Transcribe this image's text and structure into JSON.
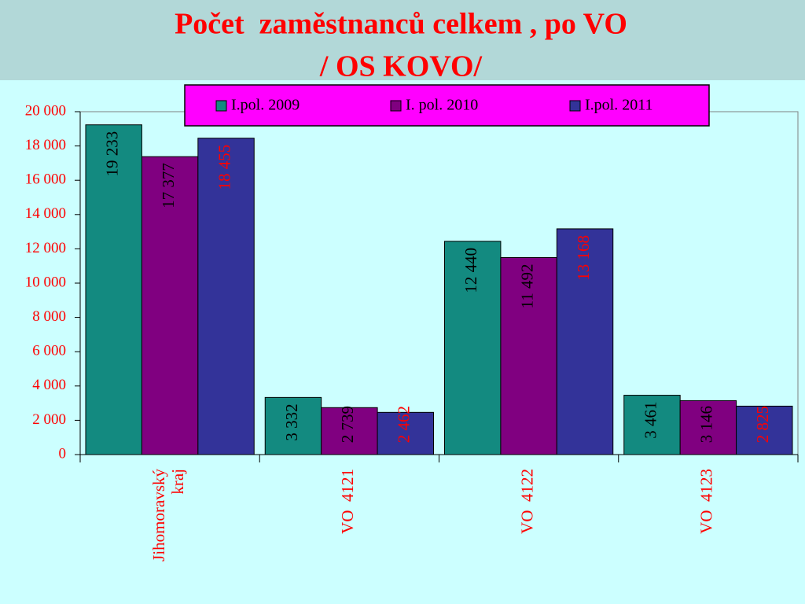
{
  "chart_data": {
    "type": "bar",
    "title": [
      "Počet  zaměstnanců celkem , po VO",
      "/ OS KOVO/"
    ],
    "categories": [
      "Jihomoravský kraj",
      "VO  4121",
      "VO  4122",
      "VO  4123"
    ],
    "series": [
      {
        "name": "I.pol. 2009",
        "color": "#138a80",
        "label_color": "#000000",
        "values": [
          19233,
          3332,
          12440,
          3461
        ],
        "value_labels": [
          "19 233",
          "3 332",
          "12 440",
          "3 461"
        ]
      },
      {
        "name": "I. pol. 2010",
        "color": "#800080",
        "label_color": "#000000",
        "values": [
          17377,
          2739,
          11492,
          3146
        ],
        "value_labels": [
          "17 377",
          "2 739",
          "11 492",
          "3 146"
        ]
      },
      {
        "name": "I.pol. 2011",
        "color": "#333399",
        "label_color": "#ff0000",
        "values": [
          18455,
          2462,
          13168,
          2825
        ],
        "value_labels": [
          "18 455",
          "2 462",
          "13 168",
          "2 825"
        ]
      }
    ],
    "ylim": [
      0,
      20000
    ],
    "yticks": [
      0,
      {
        "value": 2000,
        "label": "2 000"
      },
      {
        "value": 4000,
        "label": "4 000"
      },
      {
        "value": 6000,
        "label": "6 000"
      },
      {
        "value": 8000,
        "label": "8 000"
      },
      {
        "value": 10000,
        "label": "10 000"
      },
      {
        "value": 12000,
        "label": "12 000"
      },
      {
        "value": 14000,
        "label": "14 000"
      },
      {
        "value": 16000,
        "label": "16 000"
      },
      {
        "value": 18000,
        "label": "18 000"
      },
      {
        "value": 20000,
        "label": "20 000"
      }
    ],
    "grid": false,
    "legend": "top"
  }
}
